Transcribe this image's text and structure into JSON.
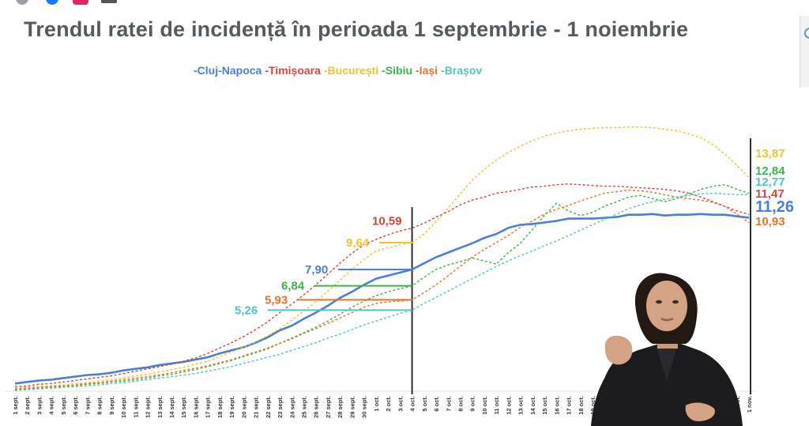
{
  "header": {
    "title": "Trendul ratei de incidență în perioada 1 septembrie - 1 noiembrie"
  },
  "colors": {
    "background": "#ffffff",
    "title": "#555a5e",
    "cluj": "#4a7fd4",
    "timisoara": "#d9443c",
    "bucuresti": "#f0c330",
    "sibiu": "#3cb549",
    "iasi": "#e8732a",
    "brasov": "#4fc7c0",
    "marker": "#2b2f3a"
  },
  "chart_data": {
    "type": "line",
    "title": "Trendul ratei de incidență în perioada 1 septembrie - 1 noiembrie",
    "xlabel": "",
    "ylabel": "",
    "ylim": [
      0,
      20
    ],
    "grid": false,
    "legend_position": "top",
    "categories": [
      "1 sept.",
      "2 sept.",
      "3 sept.",
      "4 sept.",
      "5 sept.",
      "6 sept.",
      "7 sept.",
      "8 sept.",
      "9 sept.",
      "10 sept.",
      "11 sept.",
      "12 sept.",
      "13 sept.",
      "14 sept.",
      "15 sept.",
      "16 sept.",
      "17 sept.",
      "18 sept.",
      "19 sept.",
      "20 sept.",
      "21 sept.",
      "22 sept.",
      "23 sept.",
      "24 sept.",
      "25 sept.",
      "26 sept.",
      "27 sept.",
      "28 sept.",
      "29 sept.",
      "30 sept.",
      "1 oct.",
      "2 oct.",
      "3 oct.",
      "4 oct.",
      "5 oct.",
      "6 oct.",
      "7 oct.",
      "8 oct.",
      "9 oct.",
      "10 oct.",
      "11 oct.",
      "12 oct.",
      "13 oct.",
      "14 oct.",
      "15 oct.",
      "16 oct.",
      "17 oct.",
      "18 oct.",
      "19 oct.",
      "20 oct.",
      "21 oct.",
      "22 oct.",
      "23 oct.",
      "24 oct.",
      "25 oct.",
      "26 oct.",
      "27 oct.",
      "28 oct.",
      "29 oct.",
      "30 oct.",
      "31 oct.",
      "1 nov."
    ],
    "marker_category": "4 oct.",
    "series": [
      {
        "name": "Cluj-Napoca",
        "color": "#4a7fd4",
        "dashed": false,
        "marker_value": "7,90",
        "end_value": "11,26",
        "values": [
          0.5,
          0.6,
          0.7,
          0.75,
          0.85,
          0.95,
          1.05,
          1.1,
          1.2,
          1.35,
          1.45,
          1.55,
          1.7,
          1.8,
          1.9,
          2.05,
          2.2,
          2.45,
          2.65,
          2.85,
          3.15,
          3.5,
          3.95,
          4.25,
          4.7,
          5.1,
          5.55,
          6.05,
          6.45,
          6.9,
          7.3,
          7.5,
          7.7,
          7.9,
          8.3,
          8.7,
          9.0,
          9.3,
          9.6,
          9.95,
          10.2,
          10.6,
          10.8,
          10.85,
          10.95,
          11.05,
          11.2,
          11.2,
          11.2,
          11.25,
          11.3,
          11.45,
          11.45,
          11.5,
          11.4,
          11.45,
          11.45,
          11.5,
          11.45,
          11.45,
          11.35,
          11.26
        ]
      },
      {
        "name": "Timișoara",
        "color": "#d9443c",
        "dashed": true,
        "marker_value": "10,59",
        "end_value": "11,47",
        "values": [
          0.3,
          0.35,
          0.45,
          0.5,
          0.6,
          0.7,
          0.8,
          0.9,
          1.0,
          1.15,
          1.3,
          1.45,
          1.6,
          1.75,
          1.95,
          2.15,
          2.45,
          2.8,
          3.15,
          3.55,
          4.0,
          4.5,
          5.1,
          5.65,
          6.25,
          6.9,
          7.6,
          8.3,
          8.95,
          9.5,
          9.85,
          10.15,
          10.4,
          10.59,
          10.9,
          11.3,
          11.65,
          12.1,
          12.4,
          12.6,
          12.85,
          12.95,
          13.1,
          13.25,
          13.3,
          13.4,
          13.45,
          13.4,
          13.35,
          13.3,
          13.3,
          13.25,
          13.2,
          13.15,
          13.1,
          13.0,
          12.85,
          12.6,
          12.3,
          12.0,
          11.7,
          11.47
        ]
      },
      {
        "name": "București",
        "color": "#f0c330",
        "dashed": true,
        "marker_value": "9,64",
        "end_value": "13,87",
        "values": [
          0.2,
          0.25,
          0.3,
          0.35,
          0.4,
          0.5,
          0.55,
          0.65,
          0.75,
          0.85,
          1.0,
          1.1,
          1.25,
          1.4,
          1.55,
          1.75,
          1.95,
          2.25,
          2.55,
          2.85,
          3.2,
          3.6,
          4.05,
          4.6,
          5.2,
          5.8,
          6.5,
          7.2,
          7.9,
          8.55,
          9.1,
          9.3,
          9.5,
          9.64,
          10.2,
          11.0,
          11.9,
          12.8,
          13.7,
          14.4,
          15.0,
          15.5,
          15.9,
          16.25,
          16.55,
          16.75,
          16.9,
          17.0,
          17.05,
          17.1,
          17.1,
          17.15,
          17.15,
          17.1,
          17.0,
          16.9,
          16.7,
          16.45,
          16.0,
          15.4,
          14.65,
          13.87
        ]
      },
      {
        "name": "Sibiu",
        "color": "#3cb549",
        "dashed": true,
        "marker_value": "6,84",
        "end_value": "12,84",
        "values": [
          0.1,
          0.15,
          0.2,
          0.25,
          0.3,
          0.35,
          0.45,
          0.5,
          0.6,
          0.65,
          0.75,
          0.85,
          1.0,
          1.1,
          1.25,
          1.4,
          1.6,
          1.8,
          2.0,
          2.25,
          2.5,
          2.75,
          3.1,
          3.45,
          3.8,
          4.15,
          4.55,
          5.0,
          5.45,
          5.85,
          6.2,
          6.45,
          6.65,
          6.84,
          7.4,
          7.9,
          8.2,
          8.4,
          8.65,
          8.45,
          8.25,
          9.0,
          9.6,
          10.5,
          11.4,
          12.2,
          11.7,
          11.4,
          11.6,
          12.0,
          12.3,
          12.6,
          12.7,
          12.5,
          12.3,
          12.5,
          12.8,
          13.1,
          13.3,
          13.4,
          13.1,
          12.84
        ]
      },
      {
        "name": "Iași",
        "color": "#e8732a",
        "dashed": true,
        "marker_value": "5,93",
        "end_value": "10,93",
        "values": [
          0.15,
          0.2,
          0.25,
          0.3,
          0.35,
          0.4,
          0.5,
          0.55,
          0.65,
          0.75,
          0.85,
          0.95,
          1.05,
          1.2,
          1.35,
          1.5,
          1.65,
          1.85,
          2.05,
          2.3,
          2.55,
          2.8,
          3.1,
          3.4,
          3.75,
          4.05,
          4.4,
          4.75,
          5.1,
          5.45,
          5.7,
          5.8,
          5.85,
          5.93,
          6.4,
          6.9,
          7.5,
          8.1,
          8.7,
          9.2,
          9.65,
          10.1,
          10.65,
          11.05,
          11.5,
          11.8,
          12.05,
          12.35,
          12.6,
          12.85,
          12.95,
          13.05,
          13.0,
          12.9,
          12.75,
          12.6,
          12.5,
          12.4,
          12.25,
          12.0,
          11.5,
          10.93
        ]
      },
      {
        "name": "Brașov",
        "color": "#4fc7c0",
        "dashed": true,
        "marker_value": "5,26",
        "end_value": "12,77",
        "values": [
          0.05,
          0.1,
          0.15,
          0.2,
          0.25,
          0.3,
          0.35,
          0.4,
          0.5,
          0.55,
          0.65,
          0.75,
          0.85,
          0.95,
          1.05,
          1.15,
          1.3,
          1.45,
          1.6,
          1.8,
          2.0,
          2.2,
          2.4,
          2.65,
          2.9,
          3.15,
          3.45,
          3.7,
          4.0,
          4.3,
          4.55,
          4.8,
          5.05,
          5.26,
          5.7,
          6.1,
          6.5,
          6.9,
          7.3,
          7.7,
          8.1,
          8.45,
          8.8,
          9.1,
          9.45,
          9.75,
          10.1,
          10.45,
          10.8,
          11.15,
          11.5,
          11.85,
          12.1,
          12.3,
          12.45,
          12.6,
          12.7,
          12.8,
          12.85,
          12.8,
          12.75,
          12.77
        ]
      }
    ]
  }
}
